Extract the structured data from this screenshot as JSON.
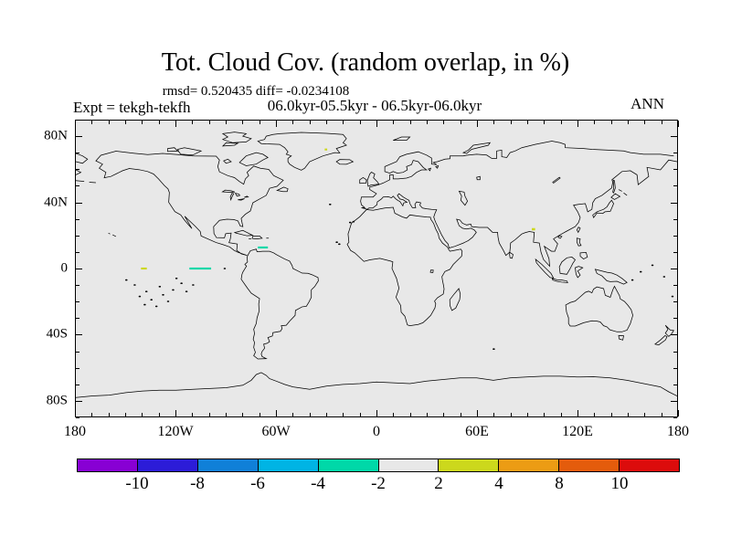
{
  "header": {
    "title": "Tot. Cloud Cov. (random overlap, in %)",
    "stats_line": "rmsd= 0.520435 diff= -0.0234108",
    "period_line": "06.0kyr-05.5kyr - 06.5kyr-06.0kyr",
    "experiment_label": "Expt = tekgh-tekfh",
    "season_label": "ANN"
  },
  "axes": {
    "lat_labels": [
      {
        "text": "80N",
        "deg": 80
      },
      {
        "text": "40N",
        "deg": 40
      },
      {
        "text": "0",
        "deg": 0
      },
      {
        "text": "40S",
        "deg": -40
      },
      {
        "text": "80S",
        "deg": -80
      }
    ],
    "lon_labels": [
      {
        "text": "180",
        "deg": -180
      },
      {
        "text": "120W",
        "deg": -120
      },
      {
        "text": "60W",
        "deg": -60
      },
      {
        "text": "0",
        "deg": 0
      },
      {
        "text": "60E",
        "deg": 60
      },
      {
        "text": "120E",
        "deg": 120
      },
      {
        "text": "180",
        "deg": 180
      }
    ],
    "lat_minor_step_deg": 10,
    "lon_minor_step_deg": 10,
    "lat_major_every_deg": 40,
    "lon_major_every_deg": 60
  },
  "map": {
    "background_color": "#e8e8e8",
    "coastline_color": "#000000",
    "frame_color": "#000000"
  },
  "colorbar": {
    "labels": [
      "-10",
      "-8",
      "-6",
      "-4",
      "-2",
      "2",
      "4",
      "8",
      "10"
    ],
    "colors": [
      "#8800d4",
      "#2c1cd8",
      "#1080d8",
      "#00b4e4",
      "#00d8a8",
      "#e8e8e8",
      "#ccd81c",
      "#ec9c14",
      "#e45c0c",
      "#dc0c0c"
    ]
  },
  "chart_data": {
    "type": "heatmap",
    "title": "Tot. Cloud Cov. (random overlap, in %)",
    "subtitle": "06.0kyr-05.5kyr - 06.5kyr-06.0kyr",
    "experiment": "tekgh-tekfh",
    "season": "ANN",
    "rmsd": 0.520435,
    "diff": -0.0234108,
    "units": "%",
    "projection": "equirectangular",
    "lon_range": [
      -180,
      180
    ],
    "lat_range": [
      -90,
      90
    ],
    "contour_levels": [
      -10,
      -8,
      -6,
      -4,
      -2,
      2,
      4,
      8,
      10
    ],
    "level_colors": [
      "#8800d4",
      "#2c1cd8",
      "#1080d8",
      "#00b4e4",
      "#00d8a8",
      "#e8e8e8",
      "#ccd81c",
      "#ec9c14",
      "#e45c0c",
      "#dc0c0c"
    ],
    "background_value_bin": "-2 to 2",
    "anomaly_features": [
      {
        "lon_min": -141,
        "lon_max": -137.5,
        "lat_min": -0.6,
        "lat_max": 0.6,
        "value_bin": "2 to 4",
        "color": "#ccd81c"
      },
      {
        "lon_min": -112,
        "lon_max": -99,
        "lat_min": -0.6,
        "lat_max": 0.6,
        "value_bin": "-4 to -2",
        "color": "#00d8a8"
      },
      {
        "lon_min": -71,
        "lon_max": -65,
        "lat_min": 12.2,
        "lat_max": 13.4,
        "value_bin": "-4 to -2",
        "color": "#00d8a8"
      },
      {
        "lon_min": -31,
        "lon_max": -29.5,
        "lat_min": 71.8,
        "lat_max": 73,
        "value_bin": "2 to 4",
        "color": "#ccd81c"
      },
      {
        "lon_min": 93,
        "lon_max": 95,
        "lat_min": 23.2,
        "lat_max": 24.6,
        "value_bin": "2 to 4",
        "color": "#ccd81c"
      }
    ]
  }
}
